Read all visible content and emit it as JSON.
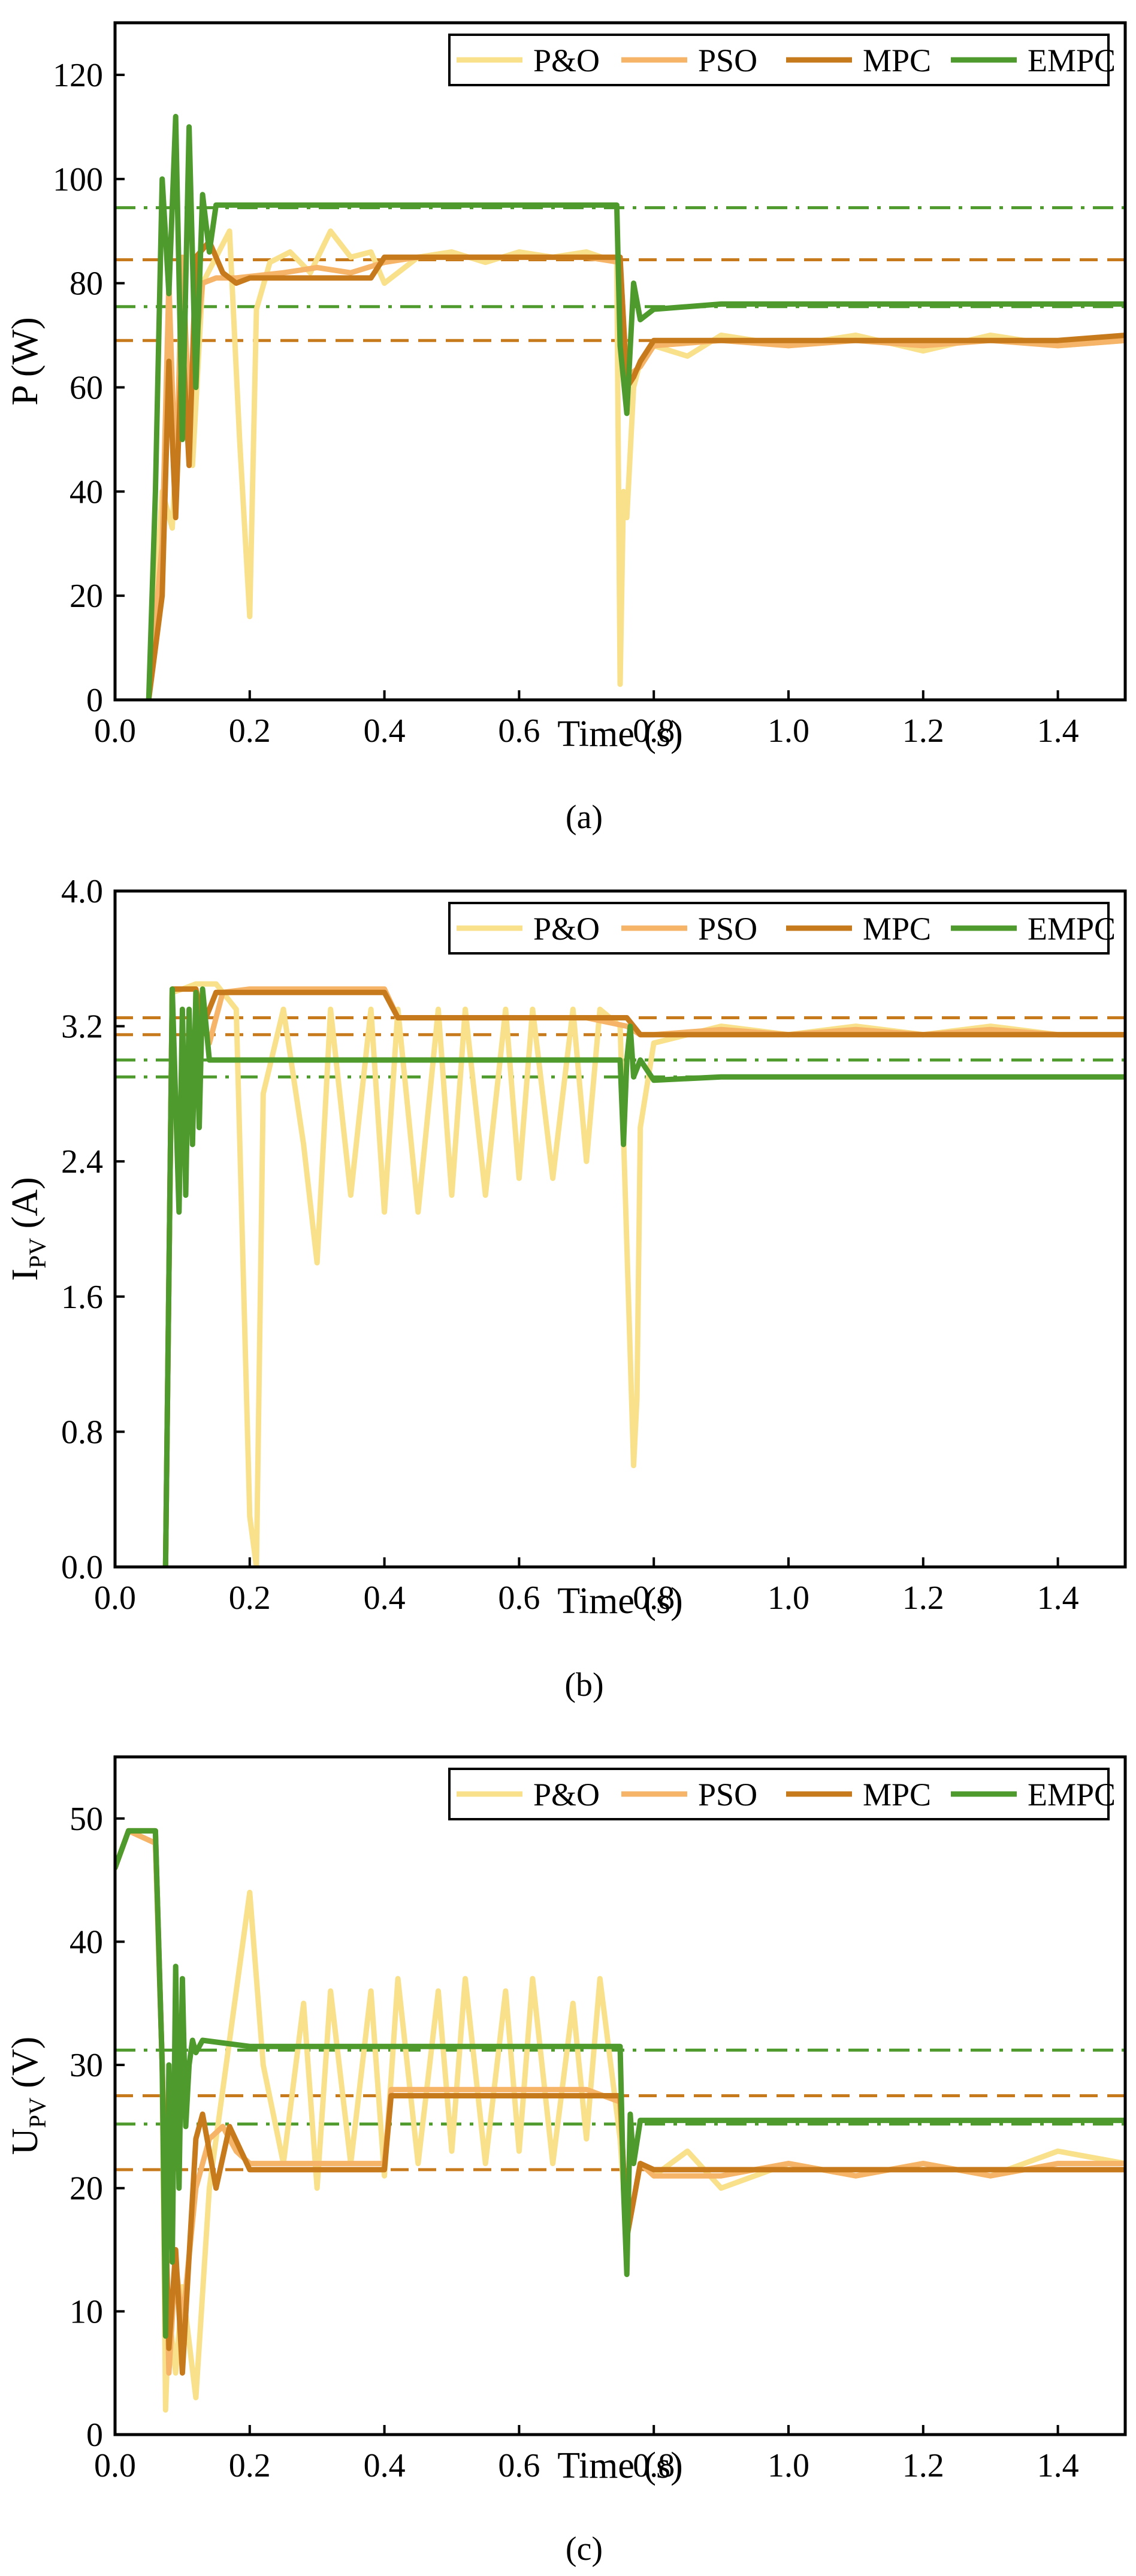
{
  "colors": {
    "P&O": "#f9e08a",
    "PSO": "#f5b468",
    "MPC": "#c77a1c",
    "EMPC": "#4e9a2c"
  },
  "chart_data": [
    {
      "type": "line",
      "panel_label": "(a)",
      "xlabel": "Time (s)",
      "ylabel": "P (W)",
      "ylabel_sub": "",
      "xlim": [
        0.0,
        1.5
      ],
      "ylim": [
        0,
        130
      ],
      "xticks": [
        0.0,
        0.2,
        0.4,
        0.6,
        0.8,
        1.0,
        1.2,
        1.4
      ],
      "xtick_labels": [
        "0.0",
        "0.2",
        "0.4",
        "0.6",
        "0.8",
        "1.0",
        "1.2",
        "1.4"
      ],
      "yticks": [
        0,
        20,
        40,
        60,
        80,
        100,
        120
      ],
      "ytick_labels": [
        "0",
        "20",
        "40",
        "60",
        "80",
        "100",
        "120"
      ],
      "legend": [
        "P&O",
        "PSO",
        "MPC",
        "EMPC"
      ],
      "legend_position": "top-right",
      "reference_lines": [
        {
          "y": 94.5,
          "style": "dashdot",
          "color": "#4e9a2c"
        },
        {
          "y": 84.5,
          "style": "dashed",
          "color": "#c77a1c"
        },
        {
          "y": 75.5,
          "style": "dashdot",
          "color": "#4e9a2c"
        },
        {
          "y": 69,
          "style": "dashed",
          "color": "#c77a1c"
        }
      ],
      "series": [
        {
          "name": "P&O",
          "x": [
            0.05,
            0.07,
            0.085,
            0.1,
            0.115,
            0.13,
            0.15,
            0.17,
            0.185,
            0.2,
            0.21,
            0.23,
            0.26,
            0.29,
            0.32,
            0.35,
            0.38,
            0.4,
            0.45,
            0.5,
            0.55,
            0.6,
            0.65,
            0.7,
            0.745,
            0.75,
            0.755,
            0.76,
            0.77,
            0.78,
            0.8,
            0.85,
            0.9,
            1.0,
            1.1,
            1.2,
            1.3,
            1.4,
            1.5
          ],
          "values": [
            0,
            40,
            33,
            70,
            45,
            80,
            85,
            90,
            50,
            16,
            75,
            84,
            86,
            82,
            90,
            85,
            86,
            80,
            85,
            86,
            84,
            86,
            85,
            86,
            84,
            3,
            40,
            35,
            60,
            65,
            68,
            66,
            70,
            68,
            70,
            67,
            70,
            68,
            69
          ]
        },
        {
          "name": "PSO",
          "x": [
            0.05,
            0.07,
            0.08,
            0.09,
            0.1,
            0.11,
            0.13,
            0.15,
            0.18,
            0.25,
            0.3,
            0.35,
            0.4,
            0.45,
            0.5,
            0.6,
            0.7,
            0.75,
            0.76,
            0.78,
            0.8,
            0.9,
            1.0,
            1.1,
            1.2,
            1.3,
            1.4,
            1.5
          ],
          "values": [
            0,
            30,
            80,
            40,
            85,
            55,
            80,
            81,
            81,
            82,
            83,
            82,
            84,
            85,
            85,
            85,
            85,
            84,
            62,
            64,
            68,
            69,
            68,
            69,
            68,
            69,
            68,
            69
          ]
        },
        {
          "name": "MPC",
          "x": [
            0.05,
            0.07,
            0.08,
            0.09,
            0.1,
            0.11,
            0.12,
            0.14,
            0.16,
            0.18,
            0.2,
            0.3,
            0.38,
            0.4,
            0.5,
            0.6,
            0.7,
            0.75,
            0.76,
            0.77,
            0.78,
            0.8,
            0.9,
            1.0,
            1.2,
            1.4,
            1.5
          ],
          "values": [
            0,
            20,
            65,
            35,
            70,
            45,
            85,
            88,
            82,
            80,
            81,
            81,
            81,
            85,
            85,
            85,
            85,
            85,
            60,
            62,
            65,
            69,
            69,
            69,
            69,
            69,
            70
          ]
        },
        {
          "name": "EMPC",
          "x": [
            0.05,
            0.06,
            0.07,
            0.08,
            0.09,
            0.1,
            0.11,
            0.12,
            0.13,
            0.14,
            0.15,
            0.2,
            0.3,
            0.4,
            0.5,
            0.6,
            0.7,
            0.745,
            0.75,
            0.76,
            0.77,
            0.78,
            0.8,
            0.9,
            1.0,
            1.1,
            1.2,
            1.3,
            1.4,
            1.5
          ],
          "values": [
            0,
            40,
            100,
            78,
            112,
            50,
            110,
            60,
            97,
            86,
            95,
            95,
            95,
            95,
            95,
            95,
            95,
            95,
            68,
            55,
            80,
            73,
            75,
            76,
            76,
            76,
            76,
            76,
            76,
            76
          ]
        }
      ]
    },
    {
      "type": "line",
      "panel_label": "(b)",
      "xlabel": "Time (s)",
      "ylabel": "I",
      "ylabel_sub": "PV",
      "ylabel_unit": " (A)",
      "xlim": [
        0.0,
        1.5
      ],
      "ylim": [
        0.0,
        4.0
      ],
      "xticks": [
        0.0,
        0.2,
        0.4,
        0.6,
        0.8,
        1.0,
        1.2,
        1.4
      ],
      "xtick_labels": [
        "0.0",
        "0.2",
        "0.4",
        "0.6",
        "0.8",
        "1.0",
        "1.2",
        "1.4"
      ],
      "yticks": [
        0.0,
        0.8,
        1.6,
        2.4,
        3.2,
        4.0
      ],
      "ytick_labels": [
        "0.0",
        "0.8",
        "1.6",
        "2.4",
        "3.2",
        "4.0"
      ],
      "legend": [
        "P&O",
        "PSO",
        "MPC",
        "EMPC"
      ],
      "legend_position": "top-right",
      "reference_lines": [
        {
          "y": 3.25,
          "style": "dashed",
          "color": "#c77a1c"
        },
        {
          "y": 3.15,
          "style": "dashed",
          "color": "#c77a1c"
        },
        {
          "y": 3.0,
          "style": "dashdot",
          "color": "#4e9a2c"
        },
        {
          "y": 2.9,
          "style": "dashdot",
          "color": "#4e9a2c"
        }
      ],
      "series": [
        {
          "name": "P&O",
          "x": [
            0.075,
            0.085,
            0.1,
            0.12,
            0.15,
            0.18,
            0.2,
            0.21,
            0.22,
            0.25,
            0.28,
            0.3,
            0.32,
            0.35,
            0.38,
            0.4,
            0.42,
            0.45,
            0.48,
            0.5,
            0.52,
            0.55,
            0.58,
            0.6,
            0.62,
            0.65,
            0.68,
            0.7,
            0.72,
            0.75,
            0.77,
            0.775,
            0.78,
            0.8,
            0.85,
            0.9,
            1.0,
            1.1,
            1.2,
            1.3,
            1.4,
            1.5
          ],
          "values": [
            0,
            3.4,
            3.42,
            3.45,
            3.45,
            3.3,
            0.3,
            0.0,
            2.8,
            3.3,
            2.5,
            1.8,
            3.3,
            2.2,
            3.3,
            2.1,
            3.3,
            2.1,
            3.3,
            2.2,
            3.3,
            2.2,
            3.3,
            2.3,
            3.3,
            2.3,
            3.3,
            2.4,
            3.3,
            3.2,
            0.6,
            1.0,
            2.6,
            3.1,
            3.15,
            3.2,
            3.15,
            3.2,
            3.15,
            3.2,
            3.15,
            3.15
          ]
        },
        {
          "name": "PSO",
          "x": [
            0.075,
            0.085,
            0.1,
            0.12,
            0.14,
            0.16,
            0.2,
            0.3,
            0.4,
            0.42,
            0.5,
            0.6,
            0.7,
            0.76,
            0.78,
            0.8,
            0.9,
            1.0,
            1.1,
            1.2,
            1.3,
            1.4,
            1.5
          ],
          "values": [
            0,
            3.42,
            3.42,
            3.42,
            3.1,
            3.4,
            3.42,
            3.42,
            3.42,
            3.25,
            3.25,
            3.25,
            3.25,
            3.2,
            3.15,
            3.15,
            3.18,
            3.15,
            3.18,
            3.15,
            3.18,
            3.15,
            3.15
          ]
        },
        {
          "name": "MPC",
          "x": [
            0.075,
            0.085,
            0.1,
            0.12,
            0.13,
            0.15,
            0.2,
            0.3,
            0.4,
            0.42,
            0.5,
            0.6,
            0.7,
            0.76,
            0.78,
            0.8,
            1.0,
            1.2,
            1.4,
            1.5
          ],
          "values": [
            0,
            3.42,
            3.42,
            3.42,
            3.2,
            3.4,
            3.4,
            3.4,
            3.4,
            3.25,
            3.25,
            3.25,
            3.25,
            3.25,
            3.15,
            3.15,
            3.15,
            3.15,
            3.15,
            3.15
          ]
        },
        {
          "name": "EMPC",
          "x": [
            0.075,
            0.085,
            0.095,
            0.1,
            0.105,
            0.11,
            0.115,
            0.12,
            0.125,
            0.13,
            0.14,
            0.2,
            0.3,
            0.4,
            0.5,
            0.6,
            0.7,
            0.75,
            0.755,
            0.76,
            0.765,
            0.77,
            0.78,
            0.8,
            0.9,
            1.0,
            1.1,
            1.2,
            1.3,
            1.4,
            1.5
          ],
          "values": [
            0,
            3.42,
            2.1,
            3.3,
            2.2,
            3.3,
            2.5,
            3.4,
            2.6,
            3.42,
            3.0,
            3.0,
            3.0,
            3.0,
            3.0,
            3.0,
            3.0,
            3.0,
            2.5,
            3.0,
            3.2,
            2.9,
            3.0,
            2.88,
            2.9,
            2.9,
            2.9,
            2.9,
            2.9,
            2.9,
            2.9
          ]
        }
      ]
    },
    {
      "type": "line",
      "panel_label": "(c)",
      "xlabel": "Time (s)",
      "ylabel": "U",
      "ylabel_sub": "PV",
      "ylabel_unit": " (V)",
      "xlim": [
        0.0,
        1.5
      ],
      "ylim": [
        0,
        55
      ],
      "xticks": [
        0.0,
        0.2,
        0.4,
        0.6,
        0.8,
        1.0,
        1.2,
        1.4
      ],
      "xtick_labels": [
        "0.0",
        "0.2",
        "0.4",
        "0.6",
        "0.8",
        "1.0",
        "1.2",
        "1.4"
      ],
      "yticks": [
        0,
        10,
        20,
        30,
        40,
        50
      ],
      "ytick_labels": [
        "0",
        "10",
        "20",
        "30",
        "40",
        "50"
      ],
      "legend": [
        "P&O",
        "PSO",
        "MPC",
        "EMPC"
      ],
      "legend_position": "top-right",
      "reference_lines": [
        {
          "y": 31.2,
          "style": "dashdot",
          "color": "#4e9a2c"
        },
        {
          "y": 27.5,
          "style": "dashed",
          "color": "#c77a1c"
        },
        {
          "y": 25.2,
          "style": "dashdot",
          "color": "#4e9a2c"
        },
        {
          "y": 21.5,
          "style": "dashed",
          "color": "#c77a1c"
        }
      ],
      "series": [
        {
          "name": "P&O",
          "x": [
            0.0,
            0.02,
            0.06,
            0.07,
            0.075,
            0.08,
            0.09,
            0.1,
            0.12,
            0.14,
            0.17,
            0.2,
            0.22,
            0.25,
            0.28,
            0.3,
            0.32,
            0.35,
            0.38,
            0.4,
            0.42,
            0.45,
            0.48,
            0.5,
            0.52,
            0.55,
            0.58,
            0.6,
            0.62,
            0.65,
            0.68,
            0.7,
            0.72,
            0.75,
            0.76,
            0.78,
            0.8,
            0.85,
            0.9,
            1.0,
            1.1,
            1.2,
            1.3,
            1.4,
            1.5
          ],
          "values": [
            46,
            49,
            48,
            30,
            2,
            10,
            5,
            12,
            3,
            20,
            32,
            44,
            30,
            22,
            35,
            20,
            36,
            22,
            36,
            21,
            37,
            22,
            36,
            23,
            37,
            22,
            36,
            23,
            37,
            22,
            35,
            24,
            37,
            24,
            16,
            22,
            21,
            23,
            20,
            22,
            21,
            22,
            21,
            23,
            22
          ]
        },
        {
          "name": "PSO",
          "x": [
            0.0,
            0.02,
            0.06,
            0.07,
            0.08,
            0.09,
            0.1,
            0.12,
            0.14,
            0.16,
            0.18,
            0.2,
            0.3,
            0.4,
            0.41,
            0.5,
            0.6,
            0.7,
            0.75,
            0.76,
            0.78,
            0.8,
            0.9,
            1.0,
            1.1,
            1.2,
            1.3,
            1.4,
            1.5
          ],
          "values": [
            46,
            49,
            48,
            30,
            5,
            14,
            9,
            20,
            24,
            25,
            23,
            22,
            22,
            22,
            28,
            28,
            28,
            28,
            27,
            16,
            22,
            21,
            21,
            22,
            21,
            22,
            21,
            22,
            22
          ]
        },
        {
          "name": "MPC",
          "x": [
            0.0,
            0.02,
            0.06,
            0.07,
            0.08,
            0.09,
            0.1,
            0.12,
            0.13,
            0.15,
            0.17,
            0.2,
            0.3,
            0.4,
            0.41,
            0.5,
            0.6,
            0.7,
            0.75,
            0.76,
            0.78,
            0.8,
            1.0,
            1.2,
            1.4,
            1.5
          ],
          "values": [
            46,
            49,
            49,
            30,
            7,
            15,
            5,
            24,
            26,
            20,
            25,
            21.5,
            21.5,
            21.5,
            27.5,
            27.5,
            27.5,
            27.5,
            27.5,
            16,
            22,
            21.5,
            21.5,
            21.5,
            21.5,
            21.5
          ]
        },
        {
          "name": "EMPC",
          "x": [
            0.0,
            0.02,
            0.06,
            0.07,
            0.075,
            0.08,
            0.085,
            0.09,
            0.095,
            0.1,
            0.105,
            0.11,
            0.115,
            0.12,
            0.13,
            0.2,
            0.3,
            0.4,
            0.5,
            0.6,
            0.7,
            0.75,
            0.755,
            0.76,
            0.765,
            0.77,
            0.78,
            0.8,
            0.9,
            1.0,
            1.1,
            1.2,
            1.3,
            1.4,
            1.5
          ],
          "values": [
            46,
            49,
            49,
            30,
            8,
            30,
            14,
            38,
            20,
            37,
            25,
            30,
            32,
            31,
            32,
            31.5,
            31.5,
            31.5,
            31.5,
            31.5,
            31.5,
            31.5,
            20,
            13,
            26,
            22,
            25.5,
            25.5,
            25.5,
            25.5,
            25.5,
            25.5,
            25.5,
            25.5,
            25.5
          ]
        }
      ]
    }
  ]
}
